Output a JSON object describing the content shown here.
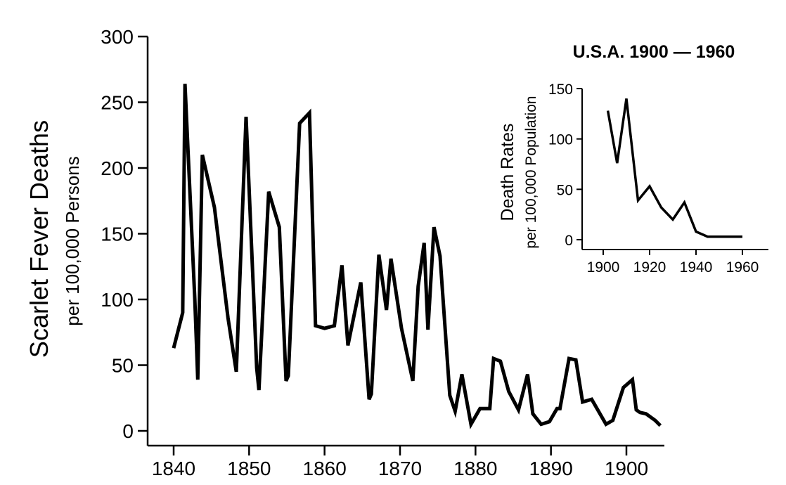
{
  "chart_data": [
    {
      "type": "line",
      "ylabel": "Scarlet Fever Deaths",
      "ylabel_sub": "per 100,000 Persons",
      "xlabel": "",
      "xlim": [
        1840,
        1905
      ],
      "ylim": [
        0,
        300
      ],
      "x_ticks": [
        1840,
        1850,
        1860,
        1870,
        1880,
        1890,
        1900
      ],
      "y_ticks": [
        0,
        50,
        100,
        150,
        200,
        250,
        300
      ],
      "grid": false,
      "series": [
        {
          "x": [
            1840,
            1841.2,
            1841.5,
            1842.8,
            1843.2,
            1843.8,
            1845.4,
            1847.2,
            1848.3,
            1849.6,
            1851,
            1851.3,
            1852.6,
            1854,
            1854.9,
            1855.2,
            1856.7,
            1858,
            1858.8,
            1860,
            1861.3,
            1862.3,
            1863.1,
            1864.8,
            1865.9,
            1866.2,
            1867.2,
            1868.2,
            1868.8,
            1870.2,
            1871.7,
            1872.4,
            1873.2,
            1873.7,
            1874.5,
            1875.3,
            1876.6,
            1877.3,
            1878.2,
            1879.4,
            1880.6,
            1881.9,
            1882.4,
            1883.3,
            1884.4,
            1885.7,
            1886.9,
            1887.6,
            1888.7,
            1889.8,
            1890.8,
            1891.2,
            1892.4,
            1893.3,
            1894.2,
            1895.4,
            1897.3,
            1898.2,
            1899.6,
            1900.8,
            1901.3,
            1901.8,
            1902.6,
            1903.8,
            1904.5
          ],
          "values": [
            63,
            90,
            264,
            100,
            39,
            210,
            170,
            86,
            45,
            239,
            48,
            31,
            182,
            155,
            38,
            42,
            234,
            242,
            80,
            78,
            80,
            126,
            65,
            113,
            24,
            28,
            134,
            92,
            131,
            78,
            38,
            110,
            143,
            77,
            155,
            133,
            27,
            15,
            43,
            5,
            17,
            17,
            55,
            53,
            30,
            16,
            43,
            13,
            5,
            7,
            17,
            17,
            55,
            54,
            22,
            24,
            5,
            8,
            33,
            39,
            16,
            14,
            13,
            8,
            4
          ]
        }
      ]
    },
    {
      "type": "line",
      "title": "U.S.A. 1900 — 1960",
      "ylabel": "Death Rates",
      "ylabel_sub": "per 100,000 Population",
      "xlabel": "",
      "xlim": [
        1900,
        1963
      ],
      "ylim": [
        0,
        150
      ],
      "x_ticks": [
        1900,
        1920,
        1940,
        1960
      ],
      "y_ticks": [
        0,
        50,
        100,
        150
      ],
      "grid": false,
      "series": [
        {
          "x": [
            1902,
            1906,
            1910,
            1915,
            1920,
            1925,
            1930,
            1935,
            1940,
            1945,
            1950,
            1955,
            1960
          ],
          "values": [
            128,
            76,
            140,
            39,
            53,
            32,
            20,
            37,
            8,
            3,
            3,
            3,
            3
          ]
        }
      ]
    }
  ]
}
